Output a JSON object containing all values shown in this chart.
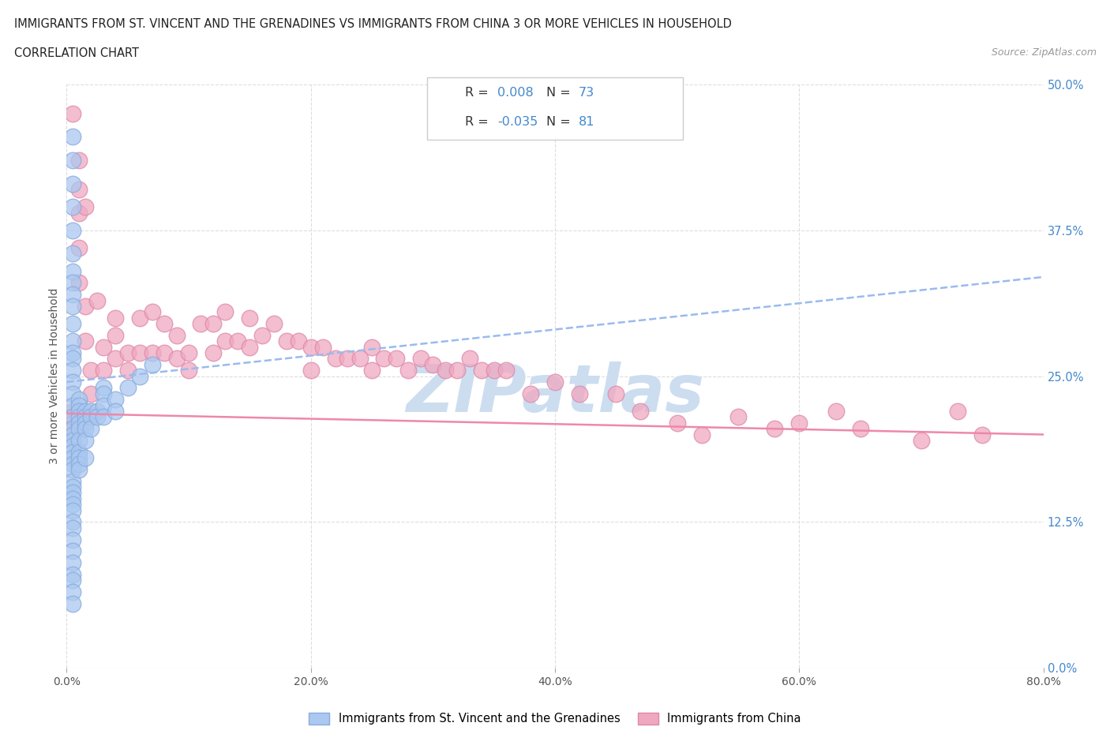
{
  "title_line1": "IMMIGRANTS FROM ST. VINCENT AND THE GRENADINES VS IMMIGRANTS FROM CHINA 3 OR MORE VEHICLES IN HOUSEHOLD",
  "title_line2": "CORRELATION CHART",
  "source_text": "Source: ZipAtlas.com",
  "xlabel_ticks": [
    "0.0%",
    "20.0%",
    "40.0%",
    "60.0%",
    "80.0%"
  ],
  "ylabel_ticks": [
    "0.0%",
    "12.5%",
    "25.0%",
    "37.5%",
    "50.0%"
  ],
  "xlim": [
    0.0,
    0.8
  ],
  "ylim": [
    0.0,
    0.5
  ],
  "color_blue": "#aac8f0",
  "color_pink": "#f0a8c0",
  "color_border_blue": "#88aadd",
  "color_border_pink": "#dd88aa",
  "color_trendline_blue": "#99bbee",
  "color_trendline_pink": "#ee88aa",
  "color_r_value": "#4488cc",
  "watermark_color": "#ccddf0",
  "bg_color": "#ffffff",
  "grid_color": "#dddddd",
  "series1_label": "Immigrants from St. Vincent and the Grenadines",
  "series2_label": "Immigrants from China",
  "trendline1_x": [
    0.0,
    0.8
  ],
  "trendline1_y": [
    0.245,
    0.335
  ],
  "trendline2_x": [
    0.0,
    0.8
  ],
  "trendline2_y": [
    0.218,
    0.2
  ],
  "scatter1_x": [
    0.005,
    0.005,
    0.005,
    0.005,
    0.005,
    0.005,
    0.005,
    0.005,
    0.005,
    0.005,
    0.005,
    0.005,
    0.005,
    0.005,
    0.005,
    0.005,
    0.005,
    0.005,
    0.005,
    0.005,
    0.005,
    0.005,
    0.005,
    0.005,
    0.005,
    0.005,
    0.005,
    0.005,
    0.005,
    0.005,
    0.005,
    0.005,
    0.005,
    0.005,
    0.005,
    0.005,
    0.005,
    0.005,
    0.005,
    0.005,
    0.005,
    0.005,
    0.01,
    0.01,
    0.01,
    0.01,
    0.01,
    0.01,
    0.01,
    0.01,
    0.01,
    0.01,
    0.01,
    0.015,
    0.015,
    0.015,
    0.015,
    0.015,
    0.015,
    0.02,
    0.02,
    0.02,
    0.025,
    0.025,
    0.03,
    0.03,
    0.03,
    0.03,
    0.04,
    0.04,
    0.05,
    0.06,
    0.07
  ],
  "scatter1_y": [
    0.455,
    0.435,
    0.415,
    0.395,
    0.375,
    0.355,
    0.34,
    0.33,
    0.32,
    0.31,
    0.295,
    0.28,
    0.27,
    0.265,
    0.255,
    0.245,
    0.235,
    0.225,
    0.215,
    0.205,
    0.2,
    0.195,
    0.19,
    0.185,
    0.18,
    0.175,
    0.17,
    0.16,
    0.155,
    0.15,
    0.145,
    0.14,
    0.135,
    0.125,
    0.12,
    0.11,
    0.1,
    0.09,
    0.08,
    0.075,
    0.065,
    0.055,
    0.23,
    0.225,
    0.22,
    0.215,
    0.21,
    0.205,
    0.195,
    0.185,
    0.18,
    0.175,
    0.17,
    0.22,
    0.215,
    0.21,
    0.205,
    0.195,
    0.18,
    0.22,
    0.215,
    0.205,
    0.22,
    0.215,
    0.24,
    0.235,
    0.225,
    0.215,
    0.23,
    0.22,
    0.24,
    0.25,
    0.26
  ],
  "scatter2_x": [
    0.005,
    0.005,
    0.005,
    0.005,
    0.005,
    0.01,
    0.01,
    0.01,
    0.01,
    0.015,
    0.015,
    0.02,
    0.02,
    0.025,
    0.03,
    0.03,
    0.04,
    0.04,
    0.04,
    0.05,
    0.05,
    0.06,
    0.06,
    0.07,
    0.07,
    0.08,
    0.08,
    0.09,
    0.09,
    0.1,
    0.1,
    0.11,
    0.12,
    0.12,
    0.13,
    0.13,
    0.14,
    0.15,
    0.15,
    0.16,
    0.17,
    0.18,
    0.19,
    0.2,
    0.2,
    0.21,
    0.22,
    0.23,
    0.24,
    0.25,
    0.25,
    0.26,
    0.27,
    0.28,
    0.29,
    0.3,
    0.31,
    0.32,
    0.33,
    0.34,
    0.35,
    0.36,
    0.38,
    0.4,
    0.42,
    0.45,
    0.47,
    0.5,
    0.52,
    0.55,
    0.58,
    0.6,
    0.63,
    0.65,
    0.7,
    0.73,
    0.75,
    0.005,
    0.01,
    0.015
  ],
  "scatter2_y": [
    0.22,
    0.215,
    0.21,
    0.205,
    0.195,
    0.39,
    0.41,
    0.36,
    0.33,
    0.31,
    0.28,
    0.255,
    0.235,
    0.315,
    0.275,
    0.255,
    0.3,
    0.285,
    0.265,
    0.27,
    0.255,
    0.3,
    0.27,
    0.305,
    0.27,
    0.295,
    0.27,
    0.285,
    0.265,
    0.27,
    0.255,
    0.295,
    0.295,
    0.27,
    0.305,
    0.28,
    0.28,
    0.3,
    0.275,
    0.285,
    0.295,
    0.28,
    0.28,
    0.275,
    0.255,
    0.275,
    0.265,
    0.265,
    0.265,
    0.275,
    0.255,
    0.265,
    0.265,
    0.255,
    0.265,
    0.26,
    0.255,
    0.255,
    0.265,
    0.255,
    0.255,
    0.255,
    0.235,
    0.245,
    0.235,
    0.235,
    0.22,
    0.21,
    0.2,
    0.215,
    0.205,
    0.21,
    0.22,
    0.205,
    0.195,
    0.22,
    0.2,
    0.475,
    0.435,
    0.395
  ]
}
